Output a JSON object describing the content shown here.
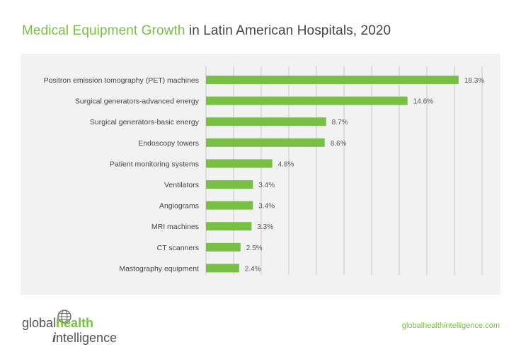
{
  "title": {
    "highlight": "Medical Equipment Growth",
    "rest": " in Latin American Hospitals, 2020"
  },
  "colors": {
    "bar": "#77c043",
    "accent": "#77c043",
    "panel": "#f2f2f2",
    "grid": "#c8c8c8"
  },
  "chart_data": {
    "type": "bar",
    "orientation": "horizontal",
    "categories": [
      "Positron emission tomography (PET) machines",
      "Surgical generators-advanced energy",
      "Surgical generators-basic energy",
      "Endoscopy towers",
      "Patient monitoring systems",
      "Ventilators",
      "Angiograms",
      "MRI machines",
      "CT scanners",
      "Mastography equipment"
    ],
    "values": [
      18.3,
      14.6,
      8.7,
      8.6,
      4.8,
      3.4,
      3.4,
      3.3,
      2.5,
      2.4
    ],
    "value_labels": [
      "18.3%",
      "14.6%",
      "8.7%",
      "8.6%",
      "4.8%",
      "3.4%",
      "3.4%",
      "3.3%",
      "2.5%",
      "2.4%"
    ],
    "title": "Medical Equipment Growth in Latin American Hospitals, 2020",
    "xlim": [
      0,
      20
    ],
    "grid": true,
    "legend": "none"
  },
  "logo": {
    "word1": "global",
    "word2": "health",
    "i": "i",
    "word3": "ntelligence"
  },
  "website": "globalhealthintelligence.com"
}
